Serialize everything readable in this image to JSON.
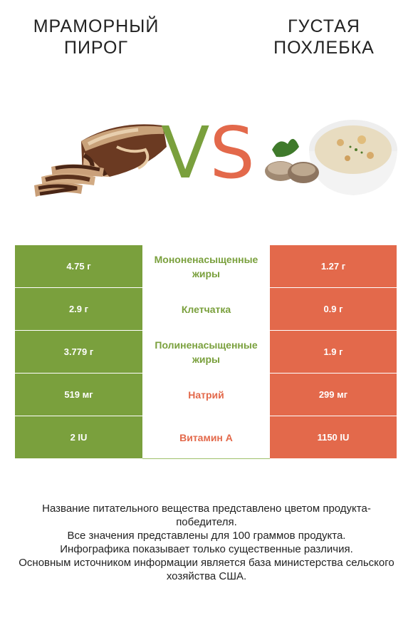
{
  "header": {
    "left_title": "МРАМОРНЫЙ\nПИРОГ",
    "right_title": "ГУСТАЯ\nПОХЛЕБКА",
    "vs_v": "V",
    "vs_s": "S"
  },
  "colors": {
    "left_accent": "#7aa03d",
    "right_accent": "#e3694b"
  },
  "rows": [
    {
      "left": "4.75 г",
      "nutrient": "Мононенасыщенные жиры",
      "right": "1.27 г",
      "winner": "left"
    },
    {
      "left": "2.9 г",
      "nutrient": "Клетчатка",
      "right": "0.9 г",
      "winner": "left"
    },
    {
      "left": "3.779 г",
      "nutrient": "Полиненасыщенные жиры",
      "right": "1.9 г",
      "winner": "left"
    },
    {
      "left": "519 мг",
      "nutrient": "Натрий",
      "right": "299 мг",
      "winner": "right"
    },
    {
      "left": "2 IU",
      "nutrient": "Витамин A",
      "right": "1150 IU",
      "winner": "right"
    }
  ],
  "footer": {
    "line1": "Название питательного вещества представлено цветом продукта-победителя.",
    "line2": "Все значения представлены для 100 граммов продукта.",
    "line3": "Инфографика показывает только существенные различия.",
    "line4": "Основным источником информации является база министерства сельского хозяйства США."
  },
  "images": {
    "left_image": "marble-cake-image",
    "right_image": "chowder-bowl-image"
  }
}
